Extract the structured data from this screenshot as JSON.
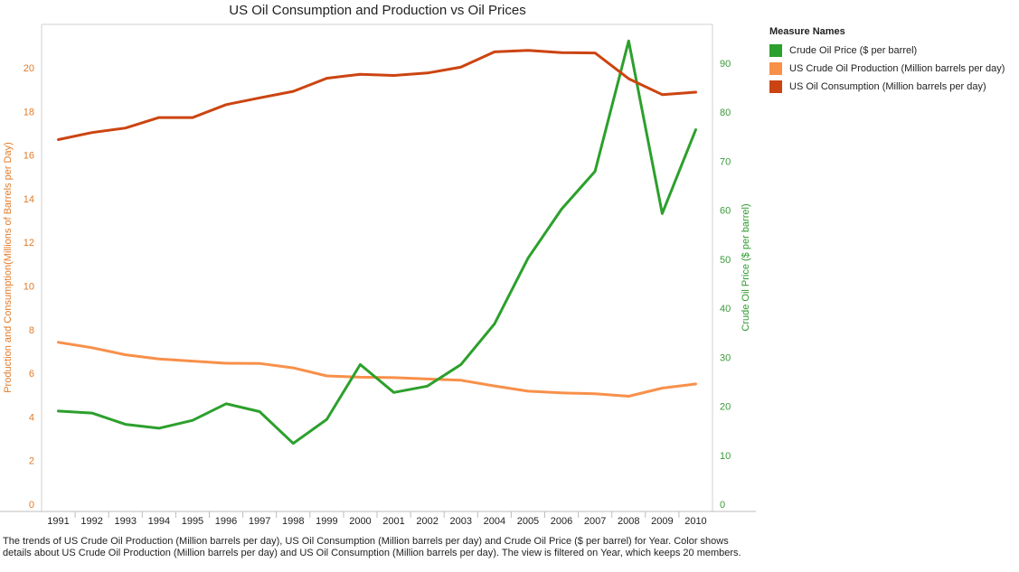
{
  "chart_data": {
    "type": "line",
    "title": "US Oil Consumption and Production vs Oil Prices",
    "x": [
      "1991",
      "1992",
      "1993",
      "1994",
      "1995",
      "1996",
      "1997",
      "1998",
      "1999",
      "2000",
      "2001",
      "2002",
      "2003",
      "2004",
      "2005",
      "2006",
      "2007",
      "2008",
      "2009",
      "2010"
    ],
    "xlabel": "",
    "ylabel_left": "Production and Consumption(Millions of Barrels per Day)",
    "ylabel_right": "Crude Oil Price ($ per barrel)",
    "ylim_left": [
      0,
      22
    ],
    "ylim_right": [
      0,
      100
    ],
    "yticks_left": [
      0,
      2,
      4,
      6,
      8,
      10,
      12,
      14,
      16,
      18,
      20
    ],
    "yticks_right": [
      0,
      10,
      20,
      30,
      40,
      50,
      60,
      70,
      80,
      90
    ],
    "grid": false,
    "legend": {
      "title": "Measure Names",
      "position": "right"
    },
    "series": [
      {
        "name": "Crude Oil Price ($ per barrel)",
        "axis": "right",
        "color": "#2ca02c",
        "values": [
          19.0,
          18.6,
          16.3,
          15.5,
          17.1,
          20.5,
          18.9,
          12.4,
          17.3,
          28.5,
          22.8,
          24.1,
          28.5,
          36.8,
          50.2,
          60.2,
          67.9,
          94.5,
          59.3,
          76.4
        ]
      },
      {
        "name": "US  Crude Oil Production (Million barrels per day)",
        "axis": "left",
        "color": "#f8904a",
        "values": [
          7.42,
          7.17,
          6.85,
          6.66,
          6.56,
          6.46,
          6.45,
          6.25,
          5.88,
          5.82,
          5.8,
          5.74,
          5.68,
          5.42,
          5.18,
          5.1,
          5.06,
          4.95,
          5.32,
          5.51
        ]
      },
      {
        "name": "US Oil Consumption (Million barrels per day)",
        "axis": "left",
        "color": "#cc4411",
        "values": [
          16.71,
          17.03,
          17.24,
          17.72,
          17.72,
          18.31,
          18.62,
          18.92,
          19.52,
          19.7,
          19.65,
          19.76,
          20.03,
          20.73,
          20.8,
          20.69,
          20.68,
          19.5,
          18.77,
          18.88
        ]
      }
    ]
  },
  "caption": "The trends of US  Crude Oil Production (Million barrels per day), US Oil Consumption (Million barrels per day) and  Crude Oil Price ($ per barrel) for Year.  Color shows details about US Crude Oil Production (Million barrels per day) and US Oil Consumption (Million barrels per day). The view is filtered on Year, which keeps 20 members."
}
